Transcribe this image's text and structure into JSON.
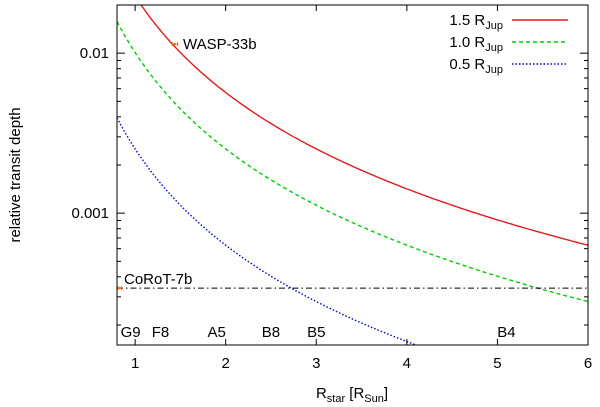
{
  "chart_data": {
    "type": "line",
    "title": "",
    "xlabel": {
      "main": "R",
      "main_sub": "star",
      "bracket_open": " [R",
      "bracket_sub": "Sun",
      "bracket_close": "]"
    },
    "ylabel": "relative transit depth",
    "xlim": [
      0.8,
      6
    ],
    "ylim": [
      0.00015,
      0.02
    ],
    "yscale": "log",
    "grid": false,
    "legend_position": "top-right",
    "x_ticks": [
      {
        "value": 1,
        "label": "1"
      },
      {
        "value": 2,
        "label": "2"
      },
      {
        "value": 3,
        "label": "3"
      },
      {
        "value": 4,
        "label": "4"
      },
      {
        "value": 5,
        "label": "5"
      },
      {
        "value": 6,
        "label": "6"
      }
    ],
    "y_ticks": [
      {
        "value": 0.01,
        "label": "0.01"
      },
      {
        "value": 0.001,
        "label": "0.001"
      }
    ],
    "series": [
      {
        "name": "1.5 R",
        "name_sub": "Jup",
        "planet_radius_rjup": 1.5,
        "color": "#e31a1c",
        "dash": "",
        "legend_key": "series-1.5"
      },
      {
        "name": "1.0 R",
        "name_sub": "Jup",
        "planet_radius_rjup": 1.0,
        "color": "#00cc00",
        "dash": "4,3",
        "legend_key": "series-1.0"
      },
      {
        "name": "0.5 R",
        "name_sub": "Jup",
        "planet_radius_rjup": 0.5,
        "color": "#0000cc",
        "dash": "1.5,2",
        "legend_key": "series-0.5"
      }
    ],
    "annotations": [
      {
        "key": "wasp33b",
        "label": "WASP-33b",
        "x": 1.44,
        "y": 0.0114,
        "xerr": 0.03,
        "color": "#ff6600"
      },
      {
        "key": "corot7b",
        "label": "CoRoT-7b",
        "x": 0.83,
        "y": 0.00034,
        "xerr": 0.02,
        "color": "#ff6600"
      }
    ],
    "reference_line": {
      "name": "CoRoT-7b depth",
      "y": 0.00034,
      "color": "#000000",
      "dash": "6,3,1.5,3"
    },
    "spectral_types": [
      {
        "label": "G9",
        "x": 0.95
      },
      {
        "label": "F8",
        "x": 1.28
      },
      {
        "label": "A5",
        "x": 1.9
      },
      {
        "label": "B8",
        "x": 2.5
      },
      {
        "label": "B5",
        "x": 3.0
      },
      {
        "label": "B4",
        "x": 5.1
      }
    ]
  }
}
